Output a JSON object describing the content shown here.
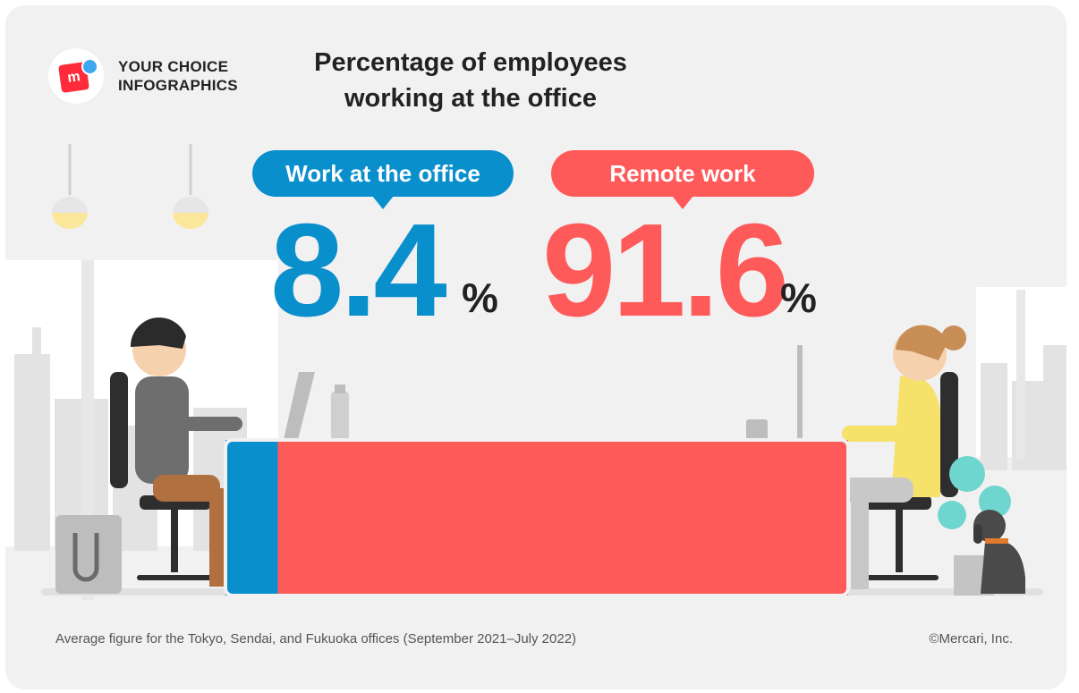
{
  "brand": {
    "line1": "YOUR CHOICE",
    "line2": "INFOGRAPHICS",
    "logo_letter": "m"
  },
  "title": {
    "line1": "Percentage of employees",
    "line2": "working at the office"
  },
  "footnote": "Average figure for the Tokyo, Sendai, and Fukuoka offices (September 2021–July 2022)",
  "copyright": "©Mercari, Inc.",
  "colors": {
    "office": "#0a8fcd",
    "remote": "#ff5a5a",
    "background": "#f1f1f1"
  },
  "chart_data": {
    "type": "bar",
    "orientation": "horizontal-stacked",
    "title": "Percentage of employees working at the office",
    "categories": [
      "Work at the office",
      "Remote work"
    ],
    "values": [
      8.4,
      91.6
    ],
    "value_labels": [
      "8.4",
      "91.6"
    ],
    "unit": "%",
    "xlim": [
      0,
      100
    ]
  }
}
